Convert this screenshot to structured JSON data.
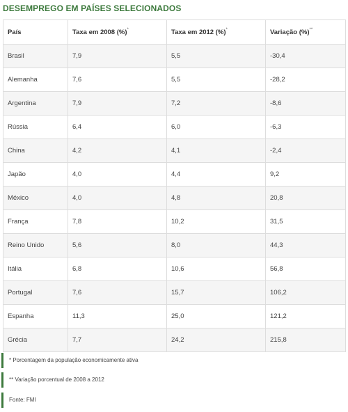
{
  "title": "DESEMPREGO EM PAÍSES SELECIONADOS",
  "table": {
    "headers": [
      {
        "label": "País",
        "marker": ""
      },
      {
        "label": "Taxa em 2008 (%)",
        "marker": "*"
      },
      {
        "label": "Taxa em 2012 (%)",
        "marker": "*"
      },
      {
        "label": "Variação (%)",
        "marker": "**"
      }
    ],
    "rows": [
      [
        "Brasil",
        "7,9",
        "5,5",
        "-30,4"
      ],
      [
        "Alemanha",
        "7,6",
        "5,5",
        "-28,2"
      ],
      [
        "Argentina",
        "7,9",
        "7,2",
        "-8,6"
      ],
      [
        "Rússia",
        "6,4",
        "6,0",
        "-6,3"
      ],
      [
        "China",
        "4,2",
        "4,1",
        "-2,4"
      ],
      [
        "Japão",
        "4,0",
        "4,4",
        "9,2"
      ],
      [
        "México",
        "4,0",
        "4,8",
        "20,8"
      ],
      [
        "França",
        "7,8",
        "10,2",
        "31,5"
      ],
      [
        "Reino Unido",
        "5,6",
        "8,0",
        "44,3"
      ],
      [
        "Itália",
        "6,8",
        "10,6",
        "56,8"
      ],
      [
        "Portugal",
        "7,6",
        "15,7",
        "106,2"
      ],
      [
        "Espanha",
        "11,3",
        "25,0",
        "121,2"
      ],
      [
        "Grécia",
        "7,7",
        "24,2",
        "215,8"
      ]
    ]
  },
  "notes": [
    "* Porcentagem da população economicamente ativa",
    "** Variação porcentual de 2008 a 2012",
    "Fonte: FMI"
  ],
  "colors": {
    "accent": "#3d7a3d",
    "row_stripe": "#f5f5f5",
    "border": "#dddddd"
  }
}
